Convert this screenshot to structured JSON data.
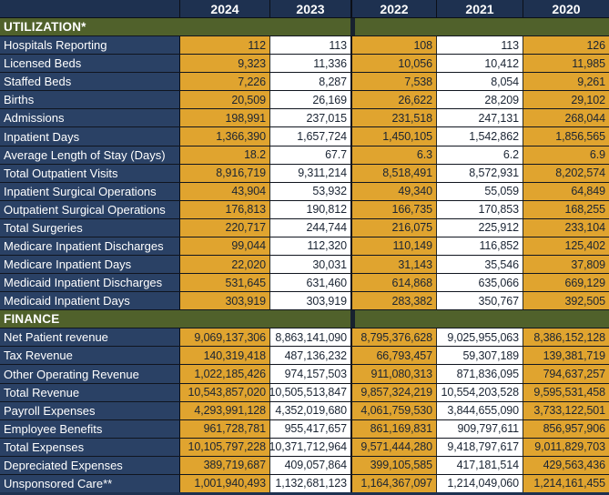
{
  "colors": {
    "header_navy": "#1E3150",
    "label_navy": "#2A4165",
    "section_green": "#50612B",
    "cell_orange": "#E0A42F",
    "cell_white": "#FFFFFF",
    "value_text": "#1A2433",
    "grid_border": "#10151f"
  },
  "table": {
    "columns": [
      "",
      "2024",
      "2023",
      "2022",
      "2021",
      "2020"
    ],
    "sections": [
      {
        "title": "UTILIZATION*",
        "rows": [
          {
            "label": "Hospitals Reporting",
            "values": [
              "112",
              "113",
              "108",
              "113",
              "126"
            ]
          },
          {
            "label": "Licensed Beds",
            "values": [
              "9,323",
              "11,336",
              "10,056",
              "10,412",
              "11,985"
            ]
          },
          {
            "label": "Staffed Beds",
            "values": [
              "7,226",
              "8,287",
              "7,538",
              "8,054",
              "9,261"
            ]
          },
          {
            "label": "Births",
            "values": [
              "20,509",
              "26,169",
              "26,622",
              "28,209",
              "29,102"
            ]
          },
          {
            "label": "Admissions",
            "values": [
              "198,991",
              "237,015",
              "231,518",
              "247,131",
              "268,044"
            ]
          },
          {
            "label": "Inpatient Days",
            "values": [
              "1,366,390",
              "1,657,724",
              "1,450,105",
              "1,542,862",
              "1,856,565"
            ]
          },
          {
            "label": "Average Length of Stay (Days)",
            "values": [
              "18.2",
              "67.7",
              "6.3",
              "6.2",
              "6.9"
            ]
          },
          {
            "label": "Total Outpatient Visits",
            "values": [
              "8,916,719",
              "9,311,214",
              "8,518,491",
              "8,572,931",
              "8,202,574"
            ]
          },
          {
            "label": "Inpatient Surgical Operations",
            "values": [
              "43,904",
              "53,932",
              "49,340",
              "55,059",
              "64,849"
            ]
          },
          {
            "label": "Outpatient Surgical Operations",
            "values": [
              "176,813",
              "190,812",
              "166,735",
              "170,853",
              "168,255"
            ]
          },
          {
            "label": "Total Surgeries",
            "values": [
              "220,717",
              "244,744",
              "216,075",
              "225,912",
              "233,104"
            ]
          },
          {
            "label": "Medicare Inpatient Discharges",
            "values": [
              "99,044",
              "112,320",
              "110,149",
              "116,852",
              "125,402"
            ]
          },
          {
            "label": "Medicare Inpatient Days",
            "values": [
              "22,020",
              "30,031",
              "31,143",
              "35,546",
              "37,809"
            ]
          },
          {
            "label": "Medicaid Inpatient Discharges",
            "values": [
              "531,645",
              "631,460",
              "614,868",
              "635,066",
              "669,129"
            ]
          },
          {
            "label": "Medicaid Inpatient Days",
            "values": [
              "303,919",
              "303,919",
              "283,382",
              "350,767",
              "392,505"
            ]
          }
        ]
      },
      {
        "title": "FINANCE",
        "rows": [
          {
            "label": "Net Patient revenue",
            "values": [
              "9,069,137,306",
              "8,863,141,090",
              "8,795,376,628",
              "9,025,955,063",
              "8,386,152,128"
            ]
          },
          {
            "label": "Tax Revenue",
            "values": [
              "140,319,418",
              "487,136,232",
              "66,793,457",
              "59,307,189",
              "139,381,719"
            ]
          },
          {
            "label": "Other Operating Revenue",
            "values": [
              "1,022,185,426",
              "974,157,503",
              "911,080,313",
              "871,836,095",
              "794,637,257"
            ]
          },
          {
            "label": "Total Revenue",
            "values": [
              "10,543,857,020",
              "10,505,513,847",
              "9,857,324,219",
              "10,554,203,528",
              "9,595,531,458"
            ]
          },
          {
            "label": "Payroll Expenses",
            "values": [
              "4,293,991,128",
              "4,352,019,680",
              "4,061,759,530",
              "3,844,655,090",
              "3,733,122,501"
            ]
          },
          {
            "label": "Employee Benefits",
            "values": [
              "961,728,781",
              "955,417,657",
              "861,169,831",
              "909,797,611",
              "856,957,906"
            ]
          },
          {
            "label": "Total Expenses",
            "values": [
              "10,105,797,228",
              "10,371,712,964",
              "9,571,444,280",
              "9,418,797,617",
              "9,011,829,703"
            ]
          },
          {
            "label": "Depreciated Expenses",
            "values": [
              "389,719,687",
              "409,057,864",
              "399,105,585",
              "417,181,514",
              "429,563,436"
            ]
          },
          {
            "label": "Unsponsored Care**",
            "values": [
              "1,001,940,493",
              "1,132,681,123",
              "1,164,367,097",
              "1,214,049,060",
              "1,214,161,455"
            ]
          }
        ]
      }
    ]
  }
}
